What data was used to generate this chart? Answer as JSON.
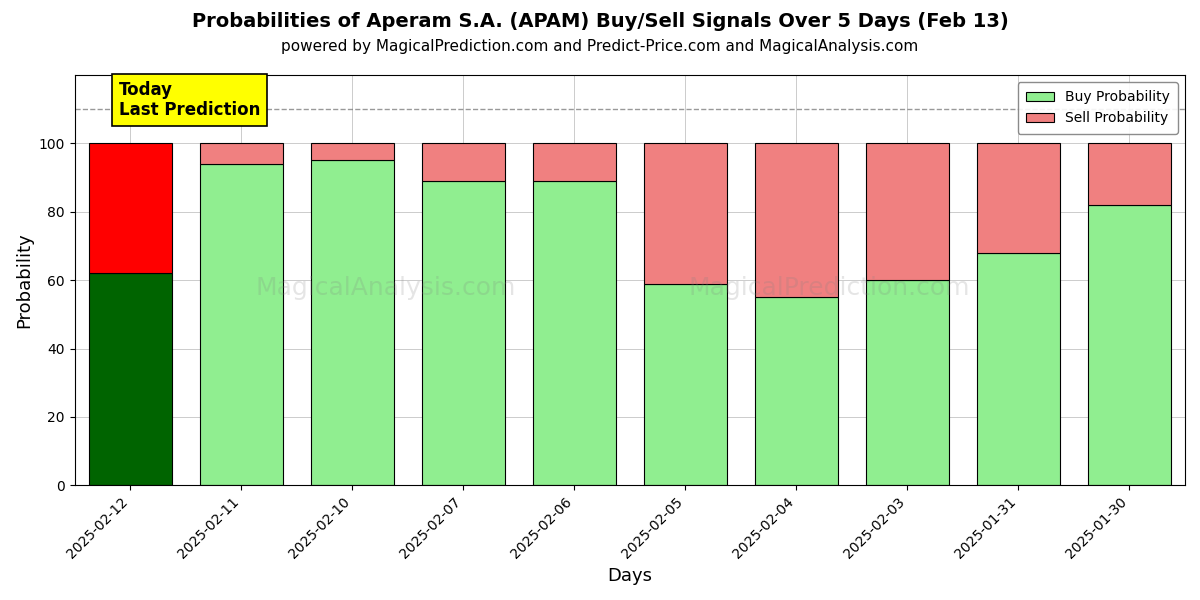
{
  "title": "Probabilities of Aperam S.A. (APAM) Buy/Sell Signals Over 5 Days (Feb 13)",
  "subtitle": "powered by MagicalPrediction.com and Predict-Price.com and MagicalAnalysis.com",
  "xlabel": "Days",
  "ylabel": "Probability",
  "dates": [
    "2025-02-12",
    "2025-02-11",
    "2025-02-10",
    "2025-02-07",
    "2025-02-06",
    "2025-02-05",
    "2025-02-04",
    "2025-02-03",
    "2025-01-31",
    "2025-01-30"
  ],
  "buy_probs": [
    62,
    94,
    95,
    89,
    89,
    59,
    55,
    60,
    68,
    82
  ],
  "sell_probs": [
    38,
    6,
    5,
    11,
    11,
    41,
    45,
    40,
    32,
    18
  ],
  "today_buy_color": "#006400",
  "today_sell_color": "#ff0000",
  "buy_color": "#90EE90",
  "sell_color": "#F08080",
  "today_annotation_bg": "#ffff00",
  "today_annotation_text": "Today\nLast Prediction",
  "dashed_line_y": 110,
  "ylim": [
    0,
    120
  ],
  "yticks": [
    0,
    20,
    40,
    60,
    80,
    100
  ],
  "legend_buy_label": "Buy Probability",
  "legend_sell_label": "Sell Probability",
  "bar_edge_color": "#000000",
  "bar_linewidth": 0.8,
  "grid_color": "#cccccc",
  "background_color": "#ffffff",
  "title_fontsize": 14,
  "subtitle_fontsize": 11,
  "axis_label_fontsize": 13
}
